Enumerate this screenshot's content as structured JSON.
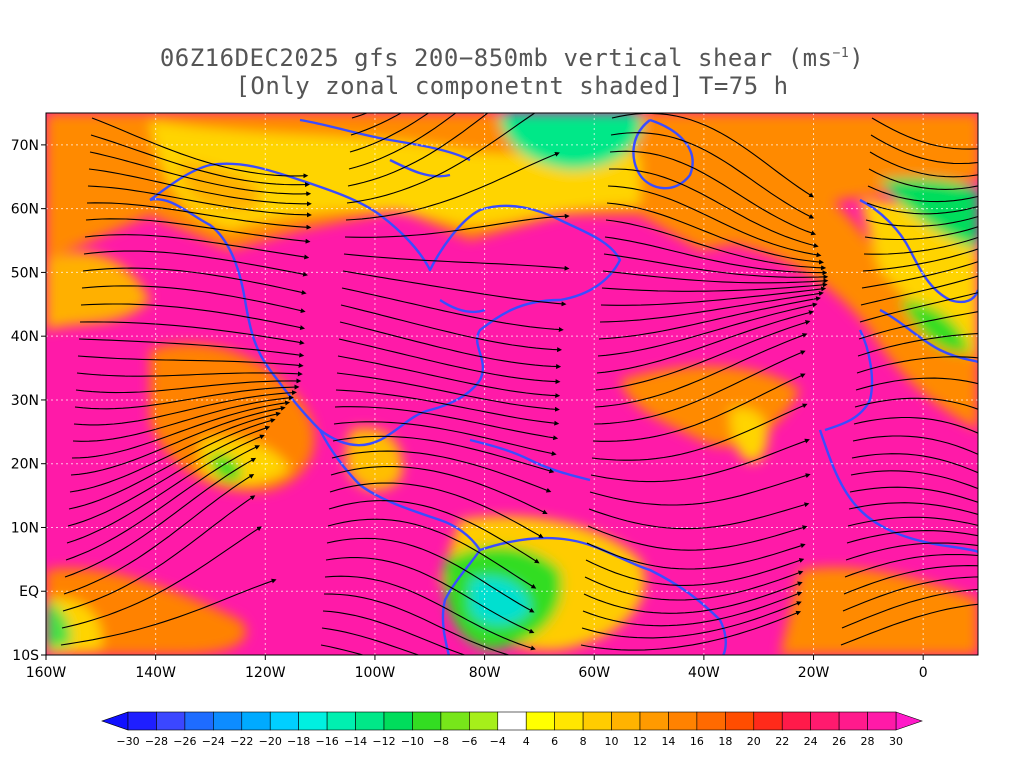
{
  "title": {
    "line1_before": "06Z16DEC2025 gfs 200−850mb vertical shear (ms",
    "line1_sup": "−1",
    "line1_after": ")",
    "line2": "[Only zonal componetnt shaded] T=75 h"
  },
  "map": {
    "lon_range": [
      -160,
      10
    ],
    "lat_range": [
      -10,
      75
    ],
    "lat_ticks": [
      {
        "value": 70,
        "label": "70N"
      },
      {
        "value": 60,
        "label": "60N"
      },
      {
        "value": 50,
        "label": "50N"
      },
      {
        "value": 40,
        "label": "40N"
      },
      {
        "value": 30,
        "label": "30N"
      },
      {
        "value": 20,
        "label": "20N"
      },
      {
        "value": 10,
        "label": "10N"
      },
      {
        "value": 0,
        "label": "EQ"
      },
      {
        "value": -10,
        "label": "10S"
      }
    ],
    "lon_ticks": [
      {
        "value": -160,
        "label": "160W"
      },
      {
        "value": -140,
        "label": "140W"
      },
      {
        "value": -120,
        "label": "120W"
      },
      {
        "value": -100,
        "label": "100W"
      },
      {
        "value": -80,
        "label": "80W"
      },
      {
        "value": -60,
        "label": "60W"
      },
      {
        "value": -40,
        "label": "40W"
      },
      {
        "value": -20,
        "label": "20W"
      },
      {
        "value": 0,
        "label": "0"
      }
    ],
    "coastline_color": "#3a4cff",
    "streamline_color": "#000000"
  },
  "colorbar": {
    "labels": [
      "-30",
      "-28",
      "-26",
      "-24",
      "-22",
      "-20",
      "-18",
      "-16",
      "-14",
      "-12",
      "-10",
      "-8",
      "-6",
      "-4",
      "4",
      "6",
      "8",
      "10",
      "12",
      "14",
      "16",
      "18",
      "20",
      "22",
      "24",
      "26",
      "28",
      "30"
    ],
    "colors": [
      "#1f1fff",
      "#3b47ff",
      "#1e6cff",
      "#0d8cff",
      "#00aaff",
      "#00cfff",
      "#00f0e0",
      "#00f0b0",
      "#00e888",
      "#00dd5c",
      "#33dd22",
      "#77e61a",
      "#a6ef1a",
      "#ffffff",
      "#ffff00",
      "#ffe600",
      "#ffcc00",
      "#ffb300",
      "#ff9a00",
      "#ff8200",
      "#ff6a00",
      "#ff4d00",
      "#ff2a1a",
      "#ff1a4a",
      "#ff1a6e",
      "#ff1a8c",
      "#ff1aa8"
    ],
    "below_color": "#1010ff",
    "above_color": "#ff1ac8"
  }
}
